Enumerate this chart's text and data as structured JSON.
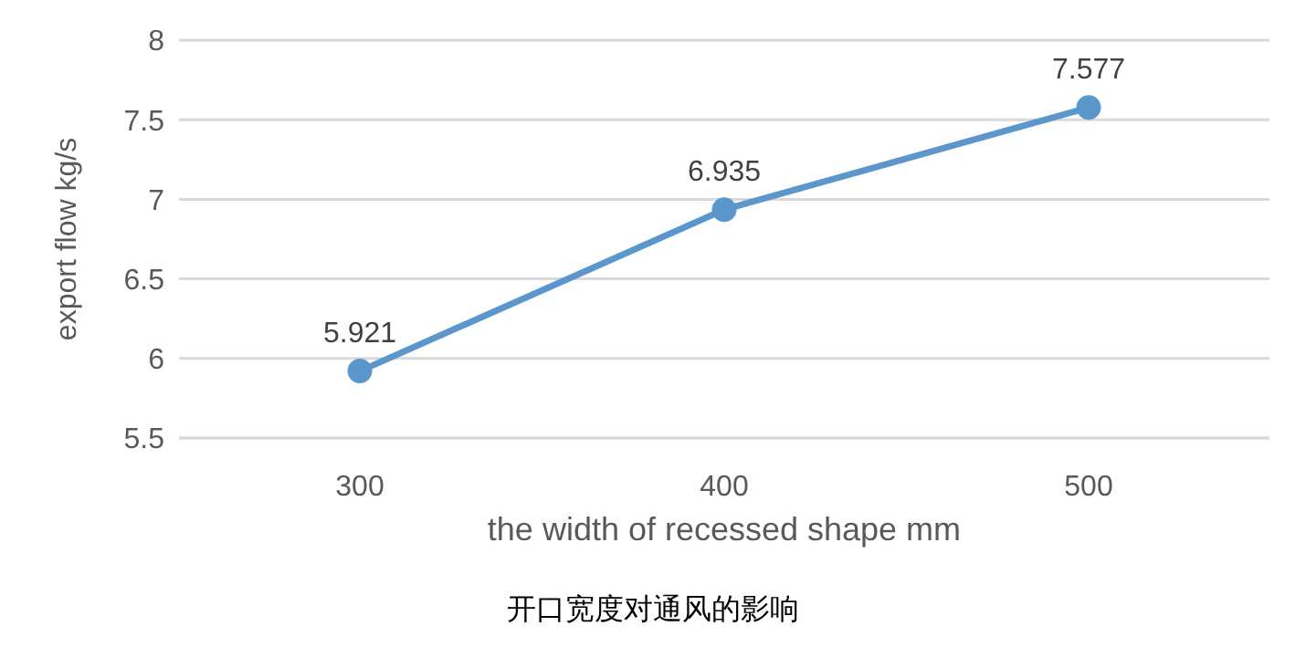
{
  "chart_data": {
    "type": "line",
    "title": "开口宽度对通风的影响",
    "xlabel": "the width of recessed shape mm",
    "ylabel": "export flow kg/s",
    "categories": [
      "300",
      "400",
      "500"
    ],
    "series": [
      {
        "color": "#5b97cc",
        "values": [
          5.921,
          6.935,
          7.577
        ]
      }
    ],
    "ylim": [
      5.5,
      8
    ],
    "yticks": [
      5.5,
      6,
      6.5,
      7,
      7.5,
      8
    ],
    "grid": "y",
    "marker": "circle",
    "line_style": "solid",
    "data_labels": true,
    "legend": false
  }
}
